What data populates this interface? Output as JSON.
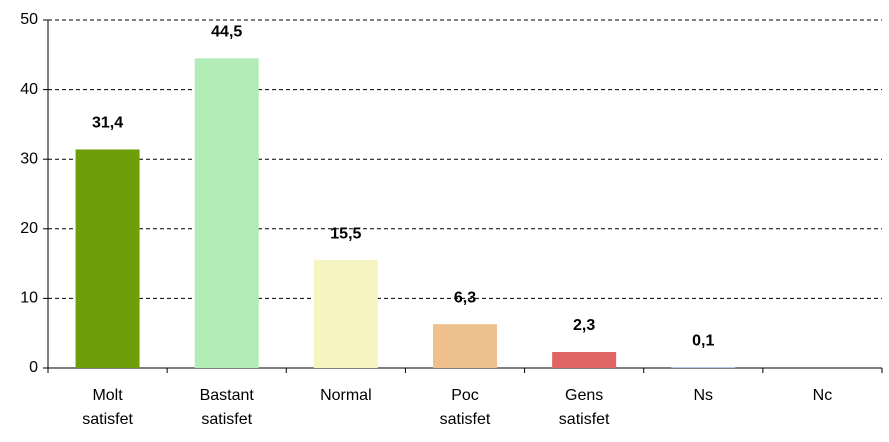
{
  "chart_data": {
    "type": "bar",
    "categories": [
      "Molt satisfet",
      "Bastant satisfet",
      "Normal",
      "Poc satisfet",
      "Gens satisfet",
      "Ns",
      "Nc"
    ],
    "values": [
      31.4,
      44.5,
      15.5,
      6.3,
      2.3,
      0.1,
      null
    ],
    "value_labels": [
      "31,4",
      "44,5",
      "15,5",
      "6,3",
      "2,3",
      "0,1",
      null
    ],
    "colors": [
      "#6e9e08",
      "#b4ecb8",
      "#f6f4c0",
      "#eec08e",
      "#e06464",
      "#9ab0d8",
      "#9ab0d8"
    ],
    "ylim": [
      0,
      50
    ],
    "yticks": [
      0,
      10,
      20,
      30,
      40,
      50
    ],
    "grid": true
  }
}
